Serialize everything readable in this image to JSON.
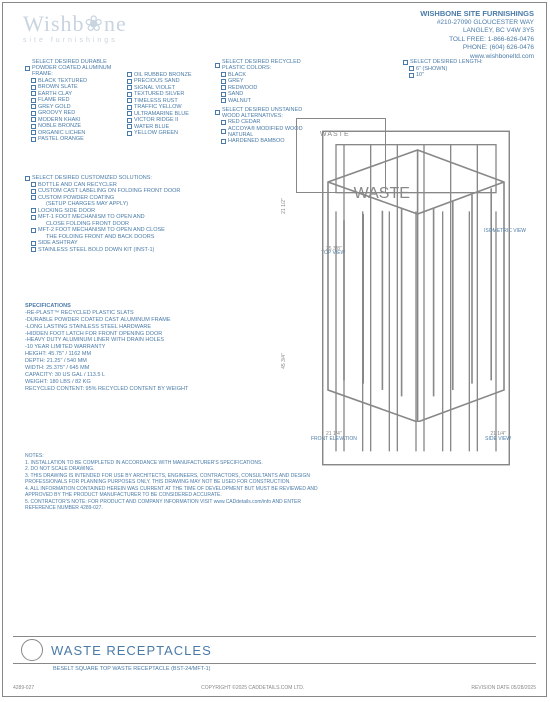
{
  "logo": {
    "main": "Wishb❀ne",
    "sub": "site furnishings"
  },
  "header": {
    "company": "WISHBONE SITE FURNISHINGS",
    "addr1": "#210-27090 GLOUCESTER WAY",
    "addr2": "LANGLEY, BC V4W 3Y5",
    "tollfree": "TOLL FREE: 1-866-626-0476",
    "phone": "PHONE: (604) 626-0476",
    "web": "www.wishboneltd.com"
  },
  "frameSection": "SELECT DESIRED DURABLE POWDER COATED ALUMINUM FRAME:",
  "frameCol1": [
    "BLACK TEXTURED",
    "BROWN SLATE",
    "EARTH CLAY",
    "FLAME RED",
    "GREY GOLD",
    "GROOVY RED",
    "MODERN KHAKI",
    "NOBLE BRONZE",
    "ORGANIC LICHEN",
    "PASTEL ORANGE"
  ],
  "frameCol2": [
    "OIL RUBBED BRONZE",
    "PRECIOUS SAND",
    "SIGNAL VIOLET",
    "TEXTURED SILVER",
    "TIMELESS RUST",
    "TRAFFIC YELLOW",
    "ULTRAMARINE BLUE",
    "VICTOR RIDGE II",
    "WATER BLUE",
    "YELLOW GREEN"
  ],
  "plasticSection": "SELECT DESIRED RECYCLED PLASTIC COLORS:",
  "plasticColors": [
    "BLACK",
    "GREY",
    "REDWOOD",
    "SAND",
    "WALNUT"
  ],
  "woodSection": "SELECT DESIRED UNSTAINED WOOD ALTERNATIVES:",
  "woodAlts": [
    "RED CEDAR",
    "ACCOYA® MODIFIED WOOD NATURAL",
    "HARDENED BAMBOO"
  ],
  "lengthSection": "SELECT DESIRED LENGTH:",
  "lengths": [
    "6\" (SHOWN)",
    "10\""
  ],
  "solutionsSection": "SELECT DESIRED CUSTOMIZED SOLUTIONS:",
  "solutions": [
    "BOTTLE AND CAN RECYCLER",
    "CUSTOM CAST LABELING ON FOLDING FRONT DOOR",
    "CUSTOM POWDER COATING",
    "  (SETUP CHARGES MAY APPLY)",
    "LOCKING SIDE DOOR",
    "MFT-1 FOOT MECHANISM TO OPEN AND",
    "  CLOSE FOLDING FRONT DOOR",
    "MFT-2 FOOT MECHANISM TO OPEN AND CLOSE",
    "  THE FOLDING FRONT AND BACK DOORS",
    "SIDE ASHTRAY",
    "STAINLESS STEEL BOLD DOWN KIT (INST-1)"
  ],
  "specs": {
    "title": "SPECIFICATIONS",
    "lines": [
      "-RE-PLAST™ RECYCLED PLASTIC SLATS",
      "-DURABLE POWDER COATED CAST ALUMINUM FRAME",
      "-LONG LASTING STAINLESS STEEL HARDWARE",
      "-HIDDEN FOOT LATCH FOR FRONT OPENING DOOR",
      "-HEAVY DUTY ALUMINUM LINER WITH DRAIN HOLES",
      "-10 YEAR LIMITED WARRANTY"
    ],
    "height": "HEIGHT: 45.75\" / 1162 MM",
    "depth": "DEPTH: 21.25\" / 540 MM",
    "width": "WIDTH: 25.375\" / 645 MM",
    "capacity": "CAPACITY: 30 US GAL / 113.5 L",
    "weight": "WEIGHT: 180 LBS / 82 KG",
    "recycled": "RECYCLED CONTENT: 95% RECYCLED CONTENT BY WEIGHT"
  },
  "notesTitle": "NOTES:",
  "notes": [
    "1.  INSTALLATION TO BE COMPLETED IN ACCORDANCE WITH MANUFACTURER'S SPECIFICATIONS.",
    "2.  DO NOT SCALE DRAWING.",
    "3.  THIS DRAWING IS INTENDED FOR USE BY ARCHITECTS, ENGINEERS, CONTRACTORS, CONSULTANTS AND DESIGN",
    "     PROFESSIONALS FOR PLANNING PURPOSES ONLY. THIS DRAWING MAY NOT BE USED FOR CONSTRUCTION.",
    "4.  ALL INFORMATION CONTAINED HEREIN WAS CURRENT AT THE TIME OF DEVELOPMENT BUT MUST BE REVIEWED AND",
    "     APPROVED BY THE PRODUCT MANUFACTURER TO BE CONSIDERED ACCURATE.",
    "5.  CONTRACTOR'S NOTE: FOR PRODUCT AND COMPANY INFORMATION VISIT www.CADdetails.com/info AND ENTER",
    "     REFERENCE NUMBER 4289-027."
  ],
  "views": {
    "top": "TOP VIEW",
    "iso": "ISOMETRIC VIEW",
    "front": "FRONT ELEVATION",
    "side": "SIDE VIEW"
  },
  "dims": {
    "d1": "21 1/2\"",
    "d2": "25 3/8\"",
    "d3": "45 3/4\"",
    "d4": "21 1/4\"",
    "d5": "21 1/4\""
  },
  "wasteLabel": "WASTE",
  "title": {
    "main": "WASTE RECEPTACLES",
    "sub": "BESELT SQUARE TOP WASTE RECEPTACLE (BST-24/MFT-1)"
  },
  "footer": {
    "ref": "4289-027",
    "copy": "COPYRIGHT ©2025 CADDETAILS.COM LTD.",
    "rev": "REVISION DATE 05/28/2025"
  }
}
